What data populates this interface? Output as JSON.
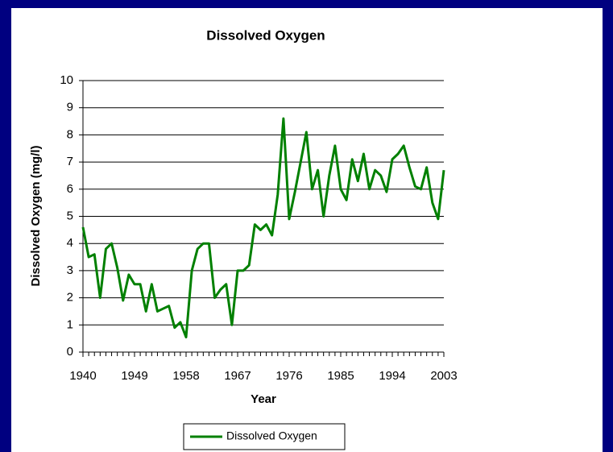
{
  "chart_data": {
    "type": "line",
    "title": "Dissolved Oxygen",
    "xlabel": "Year",
    "ylabel": "Dissolved Oxygen (mg/l)",
    "x": [
      1940,
      1941,
      1942,
      1943,
      1944,
      1945,
      1946,
      1947,
      1948,
      1949,
      1950,
      1951,
      1952,
      1953,
      1954,
      1955,
      1956,
      1957,
      1958,
      1959,
      1960,
      1961,
      1962,
      1963,
      1964,
      1965,
      1966,
      1967,
      1968,
      1969,
      1970,
      1971,
      1972,
      1973,
      1974,
      1975,
      1976,
      1977,
      1978,
      1979,
      1980,
      1981,
      1982,
      1983,
      1984,
      1985,
      1986,
      1987,
      1988,
      1989,
      1990,
      1991,
      1992,
      1993,
      1994,
      1995,
      1996,
      1997,
      1998,
      1999,
      2000,
      2001,
      2002,
      2003
    ],
    "series": [
      {
        "name": "Dissolved Oxygen",
        "color": "#008000",
        "values": [
          4.6,
          3.5,
          3.6,
          2.0,
          3.8,
          4.0,
          3.1,
          1.9,
          2.85,
          2.5,
          2.5,
          1.5,
          2.5,
          1.5,
          1.6,
          1.7,
          0.9,
          1.1,
          0.55,
          3.0,
          3.8,
          4.0,
          4.0,
          2.0,
          2.3,
          2.5,
          1.0,
          3.0,
          3.0,
          3.2,
          4.7,
          4.5,
          4.7,
          4.3,
          5.8,
          8.6,
          4.9,
          5.9,
          7.0,
          8.1,
          6.0,
          6.7,
          5.0,
          6.5,
          7.6,
          6.0,
          5.6,
          7.1,
          6.3,
          7.3,
          6.0,
          6.7,
          6.5,
          5.9,
          7.1,
          7.3,
          7.6,
          6.8,
          6.1,
          6.0,
          6.8,
          5.5,
          4.9,
          6.7
        ]
      }
    ],
    "xlim": [
      1940,
      2003
    ],
    "xticks": [
      1940,
      1949,
      1958,
      1967,
      1976,
      1985,
      1994,
      2003
    ],
    "ylim": [
      0,
      10
    ],
    "yticks": [
      0,
      1,
      2,
      3,
      4,
      5,
      6,
      7,
      8,
      9,
      10
    ],
    "grid": true,
    "legend": "bottom"
  }
}
